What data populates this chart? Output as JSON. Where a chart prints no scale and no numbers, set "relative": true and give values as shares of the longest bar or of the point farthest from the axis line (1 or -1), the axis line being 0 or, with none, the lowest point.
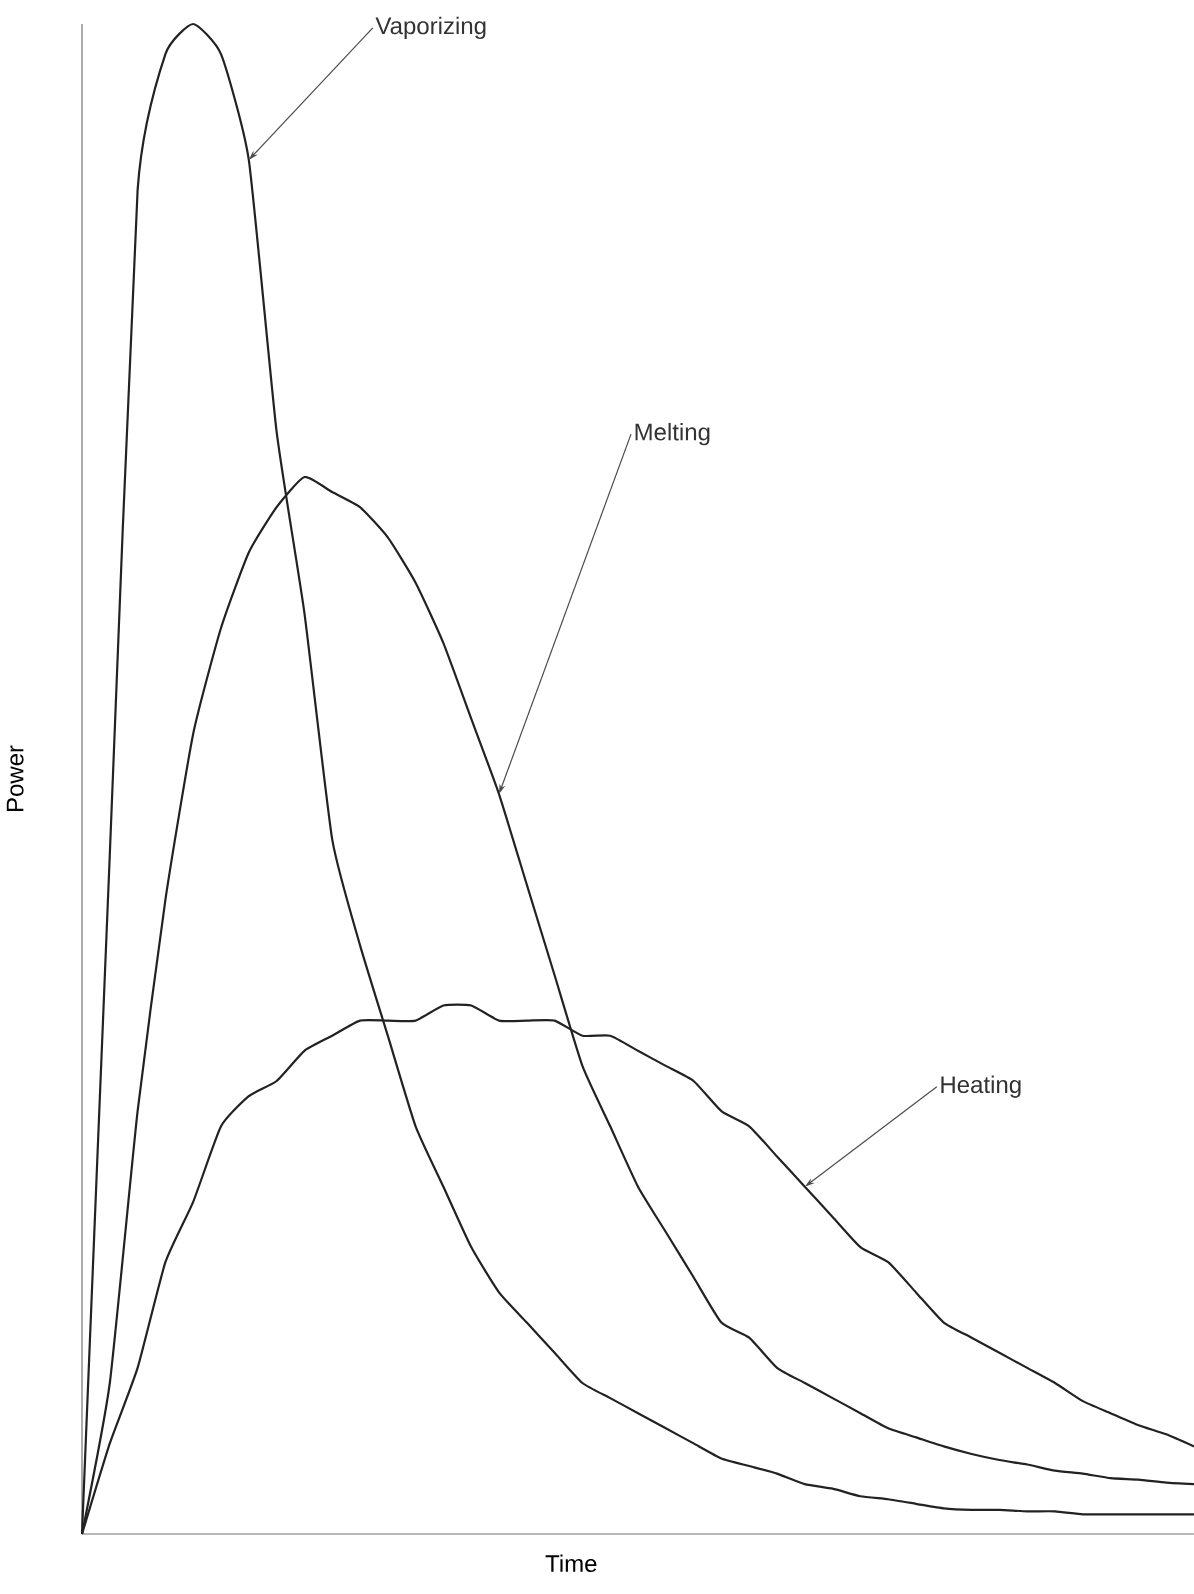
{
  "chart_data": {
    "type": "line",
    "relative": true,
    "xlabel": "Time",
    "ylabel": "Power",
    "categories": [
      null,
      null,
      null,
      null,
      null,
      null,
      null,
      null,
      null,
      null,
      null,
      null,
      null,
      null,
      null,
      null,
      null,
      null,
      null,
      null,
      null,
      null,
      null,
      null,
      null,
      null,
      null,
      null,
      null,
      null,
      null,
      null,
      null,
      null,
      null,
      null,
      null,
      null,
      null,
      null,
      null
    ],
    "series": [
      {
        "name": "Vaporizing",
        "color": "#222222",
        "values": [
          0,
          0.45,
          0.89,
          0.98,
          1.0,
          0.98,
          0.91,
          0.73,
          0.61,
          0.46,
          0.39,
          0.33,
          0.27,
          0.23,
          0.19,
          0.16,
          0.14,
          0.12,
          0.1,
          0.09,
          0.08,
          0.07,
          0.06,
          0.05,
          0.045,
          0.04,
          0.033,
          0.03,
          0.025,
          0.023,
          0.02,
          0.017,
          0.016,
          0.016,
          0.015,
          0.015,
          0.013,
          0.013,
          0.013,
          0.013,
          0.013
        ]
      },
      {
        "name": "Melting",
        "color": "#222222",
        "values": [
          0,
          0.1,
          0.28,
          0.42,
          0.53,
          0.6,
          0.65,
          0.68,
          0.7,
          0.69,
          0.68,
          0.66,
          0.63,
          0.59,
          0.54,
          0.49,
          0.43,
          0.37,
          0.31,
          0.27,
          0.23,
          0.2,
          0.17,
          0.14,
          0.13,
          0.11,
          0.1,
          0.09,
          0.08,
          0.07,
          0.064,
          0.058,
          0.053,
          0.049,
          0.046,
          0.042,
          0.04,
          0.037,
          0.036,
          0.034,
          0.033
        ]
      },
      {
        "name": "Heating",
        "color": "#222222",
        "values": [
          0,
          0.06,
          0.11,
          0.18,
          0.22,
          0.27,
          0.29,
          0.3,
          0.32,
          0.33,
          0.34,
          0.34,
          0.34,
          0.35,
          0.35,
          0.34,
          0.34,
          0.34,
          0.33,
          0.33,
          0.32,
          0.31,
          0.3,
          0.28,
          0.27,
          0.25,
          0.23,
          0.21,
          0.19,
          0.18,
          0.16,
          0.14,
          0.13,
          0.12,
          0.11,
          0.1,
          0.088,
          0.08,
          0.072,
          0.066,
          0.058
        ]
      }
    ]
  }
}
